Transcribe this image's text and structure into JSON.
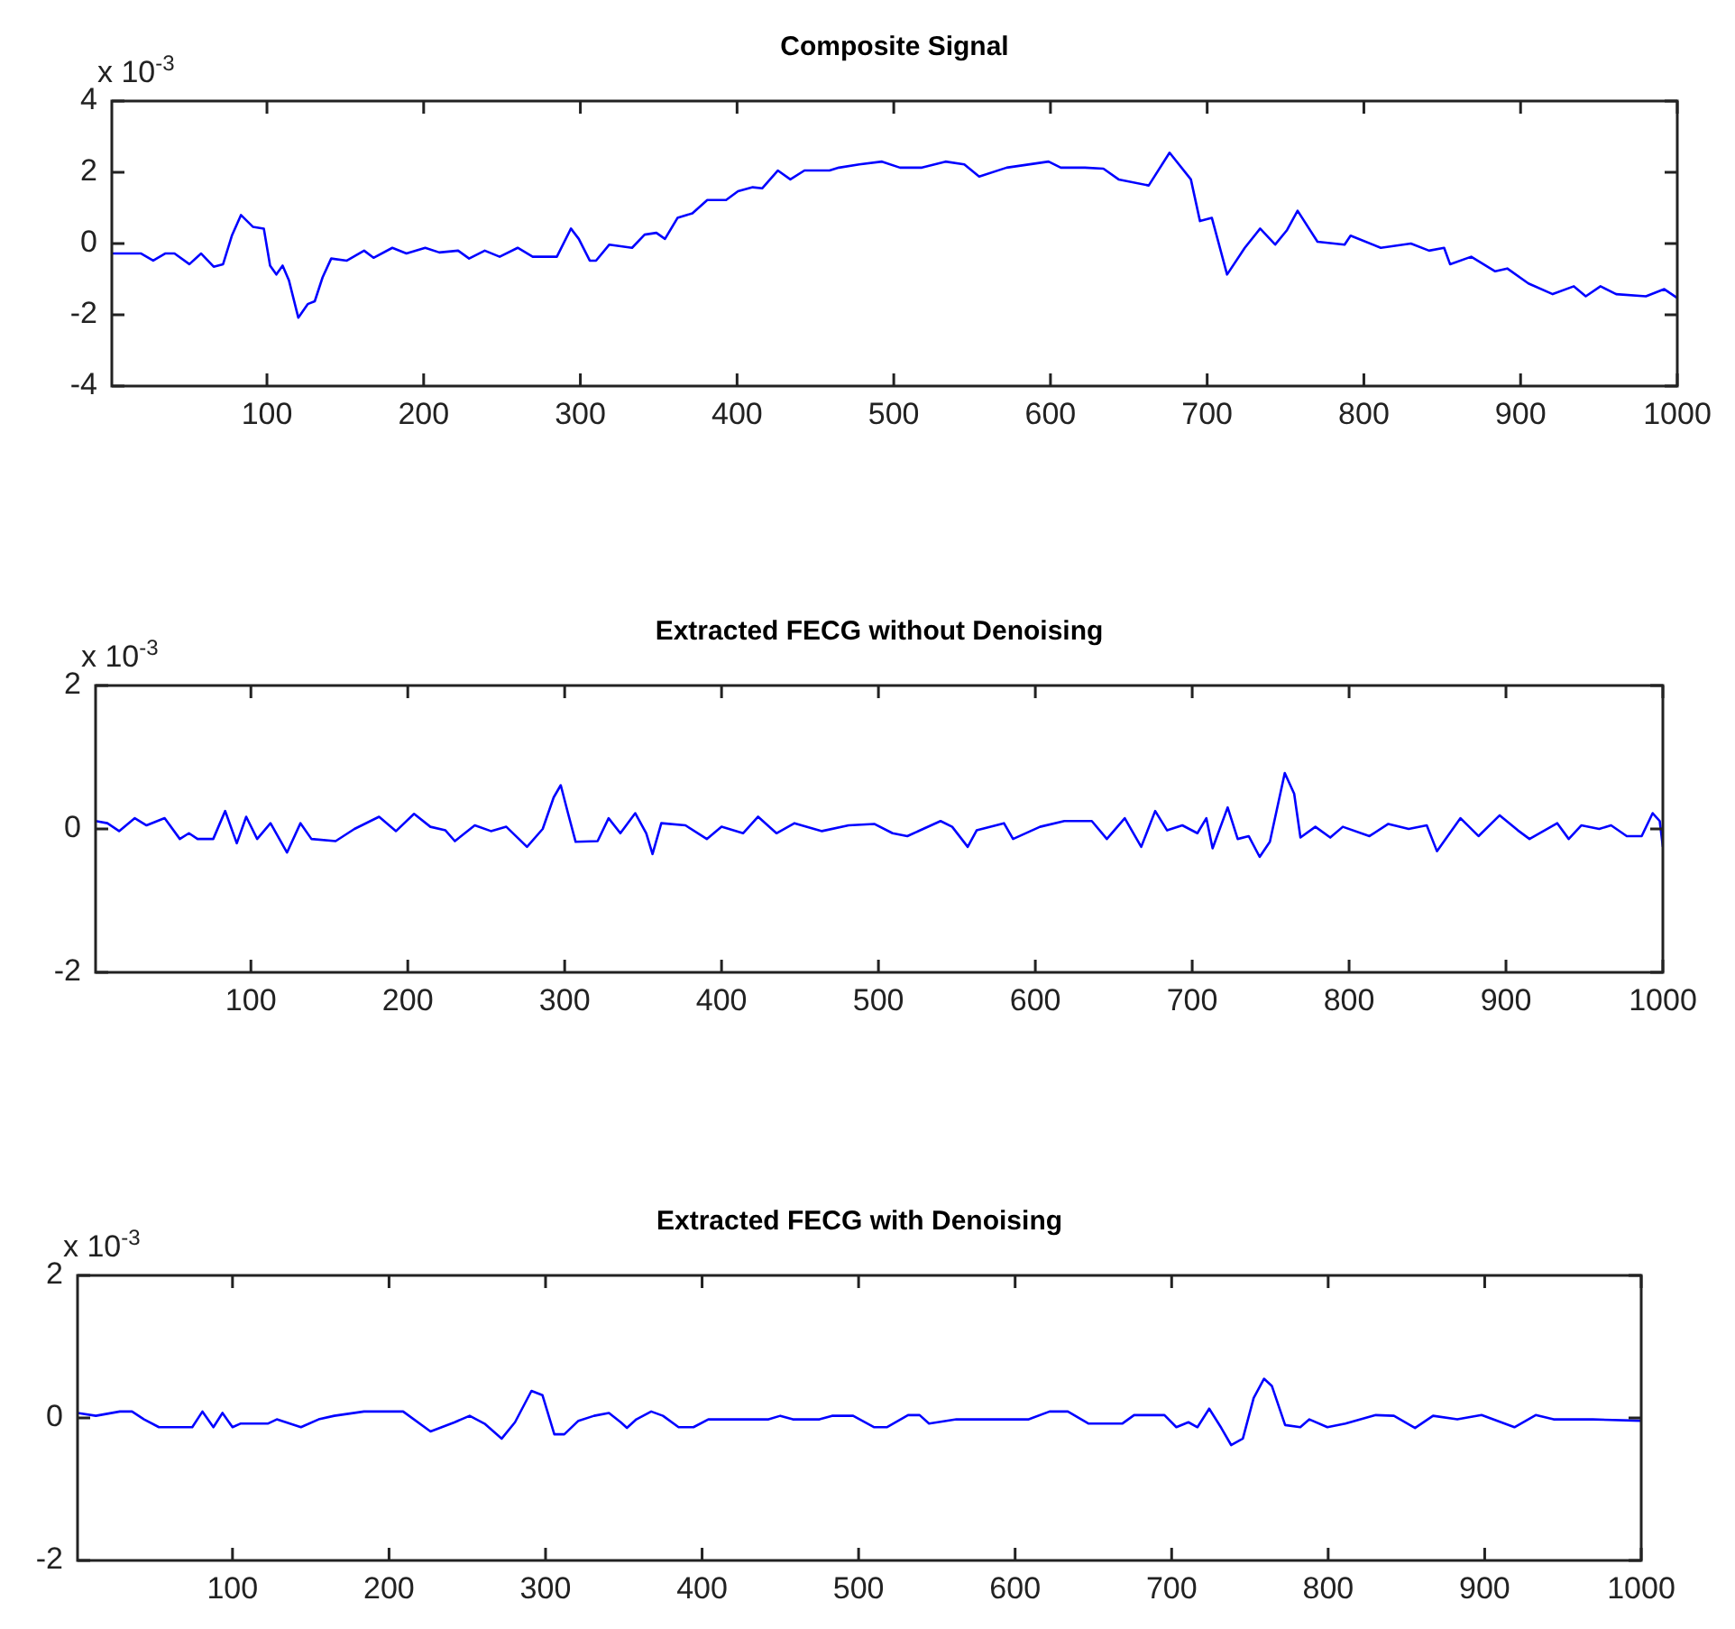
{
  "chart_data": [
    {
      "type": "line",
      "title": "Composite Signal",
      "annotations": [
        "x 10$^{-3}$"
      ],
      "color": "#0000ff",
      "xlim": [
        1,
        1000
      ],
      "xticks": [
        100,
        200,
        300,
        400,
        500,
        600,
        700,
        800,
        900,
        1000
      ],
      "ylim": [
        -4,
        4
      ],
      "yticks": [
        -4,
        -2,
        0,
        2,
        4
      ],
      "x": [
        1,
        10,
        19.7,
        27.4,
        35,
        41,
        50.5,
        58,
        66,
        72,
        77.6,
        83.4,
        91,
        98,
        102,
        106,
        110,
        114,
        120,
        126,
        130.5,
        135.5,
        141,
        151,
        162,
        168,
        180,
        189,
        201,
        210,
        222,
        229,
        239,
        248.5,
        260,
        269.6,
        285,
        294,
        299,
        306,
        310,
        318.5,
        333,
        341,
        348.5,
        354,
        362,
        371.5,
        381,
        393,
        400.6,
        410,
        416,
        426,
        434,
        443,
        459,
        465,
        478,
        492.5,
        504,
        518,
        533,
        545,
        554.5,
        572,
        598.8,
        606.6,
        622,
        633.8,
        643.5,
        662.7,
        676,
        689.6,
        695.4,
        703,
        712.7,
        724,
        733.8,
        743.4,
        751,
        757.7,
        770.4,
        787.7,
        791.5,
        810.8,
        830,
        841.6,
        851.2,
        855,
        868.5,
        883.8,
        891.5,
        905,
        920.5,
        934,
        941.6,
        951,
        961,
        980,
        991.7,
        1000
      ],
      "values": [
        -0.28,
        -0.28,
        -0.28,
        -0.48,
        -0.28,
        -0.28,
        -0.58,
        -0.28,
        -0.65,
        -0.58,
        0.22,
        0.8,
        0.47,
        0.42,
        -0.62,
        -0.87,
        -0.62,
        -1.03,
        -2.08,
        -1.7,
        -1.62,
        -0.95,
        -0.42,
        -0.48,
        -0.2,
        -0.4,
        -0.12,
        -0.28,
        -0.12,
        -0.25,
        -0.2,
        -0.42,
        -0.2,
        -0.37,
        -0.12,
        -0.37,
        -0.37,
        0.42,
        0.13,
        -0.48,
        -0.48,
        -0.03,
        -0.12,
        0.25,
        0.3,
        0.13,
        0.72,
        0.85,
        1.22,
        1.22,
        1.47,
        1.58,
        1.55,
        2.05,
        1.8,
        2.05,
        2.05,
        2.13,
        2.22,
        2.3,
        2.13,
        2.13,
        2.3,
        2.22,
        1.88,
        2.13,
        2.3,
        2.13,
        2.13,
        2.1,
        1.8,
        1.63,
        2.55,
        1.8,
        0.63,
        0.72,
        -0.87,
        -0.12,
        0.42,
        -0.03,
        0.38,
        0.92,
        0.05,
        -0.03,
        0.22,
        -0.12,
        0,
        -0.2,
        -0.12,
        -0.58,
        -0.37,
        -0.78,
        -0.7,
        -1.12,
        -1.42,
        -1.2,
        -1.48,
        -1.2,
        -1.42,
        -1.48,
        -1.28,
        -1.53
      ]
    },
    {
      "type": "line",
      "title": "Extracted FECG without Denoising",
      "annotations": [
        "x 10$^{-3}$"
      ],
      "color": "#0000ff",
      "xlim": [
        1,
        1000
      ],
      "xticks": [
        100,
        200,
        300,
        400,
        500,
        600,
        700,
        800,
        900,
        1000
      ],
      "ylim": [
        -2,
        2
      ],
      "yticks": [
        -2,
        0,
        2
      ],
      "x": [
        1,
        8.5,
        16,
        26,
        33.5,
        45,
        54.7,
        60.5,
        66,
        76,
        83.6,
        91,
        97,
        104,
        112.5,
        123,
        131.6,
        138.6,
        154,
        166,
        181.7,
        192.5,
        204,
        214.4,
        224,
        230,
        242.7,
        253,
        262.8,
        276,
        286,
        293,
        297.5,
        302,
        307,
        321,
        328,
        335.5,
        345,
        352,
        356,
        361.6,
        377,
        390.6,
        400,
        413.7,
        423.3,
        435,
        446.5,
        464,
        481,
        497.3,
        509,
        518.4,
        539.6,
        547,
        556.9,
        562.6,
        580,
        585.8,
        603,
        618.5,
        636,
        645.6,
        657,
        667.5,
        676.4,
        684,
        693.7,
        703.3,
        709,
        713,
        722.6,
        729,
        736,
        743,
        749.5,
        759,
        765,
        769,
        778.5,
        788,
        796,
        813,
        825,
        838,
        849.5,
        856,
        871,
        882.5,
        896,
        907.6,
        915,
        932.7,
        940,
        948,
        959.4,
        967,
        977,
        986.5,
        993.5,
        998,
        1000
      ],
      "values": [
        0.11,
        0.08,
        -0.03,
        0.15,
        0.05,
        0.15,
        -0.14,
        -0.06,
        -0.14,
        -0.14,
        0.25,
        -0.2,
        0.17,
        -0.14,
        0.08,
        -0.33,
        0.08,
        -0.14,
        -0.17,
        0,
        0.17,
        -0.03,
        0.21,
        0.03,
        -0.02,
        -0.17,
        0.05,
        -0.03,
        0.03,
        -0.25,
        0,
        0.44,
        0.61,
        0.23,
        -0.18,
        -0.17,
        0.15,
        -0.06,
        0.22,
        -0.06,
        -0.35,
        0.08,
        0.05,
        -0.14,
        0.03,
        -0.06,
        0.17,
        -0.06,
        0.08,
        -0.03,
        0.05,
        0.07,
        -0.06,
        -0.1,
        0.11,
        0.03,
        -0.25,
        -0.02,
        0.08,
        -0.14,
        0.03,
        0.11,
        0.11,
        -0.14,
        0.15,
        -0.25,
        0.25,
        -0.02,
        0.05,
        -0.06,
        0.15,
        -0.27,
        0.3,
        -0.14,
        -0.1,
        -0.39,
        -0.18,
        0.78,
        0.49,
        -0.12,
        0.03,
        -0.12,
        0.03,
        -0.1,
        0.07,
        0,
        0.05,
        -0.31,
        0.15,
        -0.1,
        0.19,
        -0.02,
        -0.14,
        0.08,
        -0.14,
        0.05,
        0,
        0.05,
        -0.1,
        -0.1,
        0.22,
        0.11,
        -0.25
      ]
    },
    {
      "type": "line",
      "title": "Extracted FECG with Denoising",
      "annotations": [
        "x 10$^{-3}$"
      ],
      "color": "#0000ff",
      "xlim": [
        1,
        1000
      ],
      "xticks": [
        100,
        200,
        300,
        400,
        500,
        600,
        700,
        800,
        900,
        1000
      ],
      "ylim": [
        -2,
        2
      ],
      "yticks": [
        -2,
        0,
        2
      ],
      "x": [
        1,
        12.7,
        28,
        35.8,
        43.5,
        53,
        74.3,
        80.8,
        87.8,
        93.6,
        100,
        105,
        122.5,
        128.3,
        143.7,
        155,
        165,
        184,
        209,
        226.5,
        242,
        251.5,
        261,
        272,
        280.5,
        291,
        298,
        305.6,
        312,
        321,
        331,
        340.5,
        348,
        352,
        358,
        367.5,
        375,
        385,
        394.5,
        404,
        442.5,
        450,
        458,
        475,
        483,
        496.5,
        510,
        518,
        531.6,
        539,
        545,
        562.5,
        608.7,
        622,
        633.7,
        647,
        668.4,
        676,
        695.4,
        703,
        710.7,
        716.5,
        724,
        731.7,
        738,
        745.5,
        752.4,
        759,
        764,
        772.5,
        782.2,
        788,
        799.5,
        811,
        830.4,
        842,
        855.5,
        867,
        882.5,
        898,
        919,
        932.6,
        944,
        969,
        1000
      ],
      "values": [
        0.07,
        0.03,
        0.09,
        0.09,
        -0.02,
        -0.13,
        -0.13,
        0.09,
        -0.13,
        0.07,
        -0.13,
        -0.08,
        -0.08,
        -0.02,
        -0.13,
        -0.02,
        0.03,
        0.09,
        0.09,
        -0.19,
        -0.06,
        0.03,
        -0.08,
        -0.29,
        -0.06,
        0.38,
        0.32,
        -0.23,
        -0.23,
        -0.04,
        0.03,
        0.07,
        -0.06,
        -0.14,
        -0.02,
        0.09,
        0.03,
        -0.13,
        -0.13,
        -0.02,
        -0.02,
        0.03,
        -0.02,
        -0.02,
        0.03,
        0.03,
        -0.13,
        -0.13,
        0.04,
        0.04,
        -0.08,
        -0.02,
        -0.02,
        0.09,
        0.09,
        -0.08,
        -0.08,
        0.04,
        0.04,
        -0.13,
        -0.06,
        -0.13,
        0.13,
        -0.14,
        -0.38,
        -0.29,
        0.28,
        0.55,
        0.45,
        -0.1,
        -0.13,
        -0.02,
        -0.13,
        -0.08,
        0.04,
        0.03,
        -0.14,
        0.03,
        -0.02,
        0.04,
        -0.13,
        0.04,
        -0.02,
        -0.02,
        -0.04
      ]
    }
  ]
}
